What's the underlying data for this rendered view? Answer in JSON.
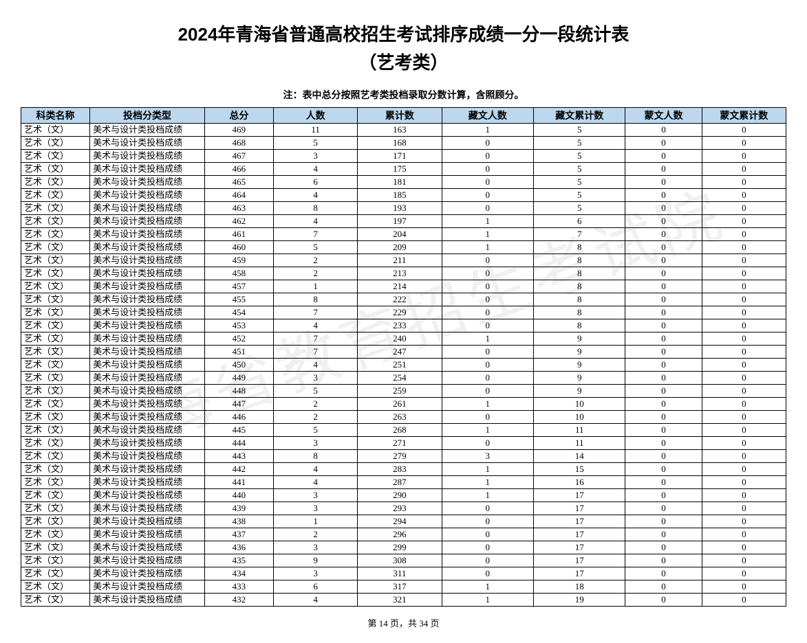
{
  "title": "2024年青海省普通高校招生考试排序成绩一分一段统计表",
  "subtitle": "（艺考类）",
  "note": "注：表中总分按照艺考类投档录取分数计算，含照顾分。",
  "watermark": "青海省教育招生考试院",
  "footer": "第 14 页，共 34 页",
  "columns": [
    "科类名称",
    "投档分类型",
    "总分",
    "人数",
    "累计数",
    "藏文人数",
    "藏文累计数",
    "蒙文人数",
    "蒙文累计数"
  ],
  "header_bg": "#bdd7ee",
  "border_color": "#000000",
  "category_label": "艺术（文）",
  "type_label": "美术与设计类投档成绩",
  "rows": [
    {
      "score": 469,
      "count": 11,
      "cum": 163,
      "zw": 1,
      "zw_cum": 5,
      "mw": 0,
      "mw_cum": 0
    },
    {
      "score": 468,
      "count": 5,
      "cum": 168,
      "zw": 0,
      "zw_cum": 5,
      "mw": 0,
      "mw_cum": 0
    },
    {
      "score": 467,
      "count": 3,
      "cum": 171,
      "zw": 0,
      "zw_cum": 5,
      "mw": 0,
      "mw_cum": 0
    },
    {
      "score": 466,
      "count": 4,
      "cum": 175,
      "zw": 0,
      "zw_cum": 5,
      "mw": 0,
      "mw_cum": 0
    },
    {
      "score": 465,
      "count": 6,
      "cum": 181,
      "zw": 0,
      "zw_cum": 5,
      "mw": 0,
      "mw_cum": 0
    },
    {
      "score": 464,
      "count": 4,
      "cum": 185,
      "zw": 0,
      "zw_cum": 5,
      "mw": 0,
      "mw_cum": 0
    },
    {
      "score": 463,
      "count": 8,
      "cum": 193,
      "zw": 0,
      "zw_cum": 5,
      "mw": 0,
      "mw_cum": 0
    },
    {
      "score": 462,
      "count": 4,
      "cum": 197,
      "zw": 1,
      "zw_cum": 6,
      "mw": 0,
      "mw_cum": 0
    },
    {
      "score": 461,
      "count": 7,
      "cum": 204,
      "zw": 1,
      "zw_cum": 7,
      "mw": 0,
      "mw_cum": 0
    },
    {
      "score": 460,
      "count": 5,
      "cum": 209,
      "zw": 1,
      "zw_cum": 8,
      "mw": 0,
      "mw_cum": 0
    },
    {
      "score": 459,
      "count": 2,
      "cum": 211,
      "zw": 0,
      "zw_cum": 8,
      "mw": 0,
      "mw_cum": 0
    },
    {
      "score": 458,
      "count": 2,
      "cum": 213,
      "zw": 0,
      "zw_cum": 8,
      "mw": 0,
      "mw_cum": 0
    },
    {
      "score": 457,
      "count": 1,
      "cum": 214,
      "zw": 0,
      "zw_cum": 8,
      "mw": 0,
      "mw_cum": 0
    },
    {
      "score": 455,
      "count": 8,
      "cum": 222,
      "zw": 0,
      "zw_cum": 8,
      "mw": 0,
      "mw_cum": 0
    },
    {
      "score": 454,
      "count": 7,
      "cum": 229,
      "zw": 0,
      "zw_cum": 8,
      "mw": 0,
      "mw_cum": 0
    },
    {
      "score": 453,
      "count": 4,
      "cum": 233,
      "zw": 0,
      "zw_cum": 8,
      "mw": 0,
      "mw_cum": 0
    },
    {
      "score": 452,
      "count": 7,
      "cum": 240,
      "zw": 1,
      "zw_cum": 9,
      "mw": 0,
      "mw_cum": 0
    },
    {
      "score": 451,
      "count": 7,
      "cum": 247,
      "zw": 0,
      "zw_cum": 9,
      "mw": 0,
      "mw_cum": 0
    },
    {
      "score": 450,
      "count": 4,
      "cum": 251,
      "zw": 0,
      "zw_cum": 9,
      "mw": 0,
      "mw_cum": 0
    },
    {
      "score": 449,
      "count": 3,
      "cum": 254,
      "zw": 0,
      "zw_cum": 9,
      "mw": 0,
      "mw_cum": 0
    },
    {
      "score": 448,
      "count": 5,
      "cum": 259,
      "zw": 0,
      "zw_cum": 9,
      "mw": 0,
      "mw_cum": 0
    },
    {
      "score": 447,
      "count": 2,
      "cum": 261,
      "zw": 1,
      "zw_cum": 10,
      "mw": 0,
      "mw_cum": 0
    },
    {
      "score": 446,
      "count": 2,
      "cum": 263,
      "zw": 0,
      "zw_cum": 10,
      "mw": 0,
      "mw_cum": 0
    },
    {
      "score": 445,
      "count": 5,
      "cum": 268,
      "zw": 1,
      "zw_cum": 11,
      "mw": 0,
      "mw_cum": 0
    },
    {
      "score": 444,
      "count": 3,
      "cum": 271,
      "zw": 0,
      "zw_cum": 11,
      "mw": 0,
      "mw_cum": 0
    },
    {
      "score": 443,
      "count": 8,
      "cum": 279,
      "zw": 3,
      "zw_cum": 14,
      "mw": 0,
      "mw_cum": 0
    },
    {
      "score": 442,
      "count": 4,
      "cum": 283,
      "zw": 1,
      "zw_cum": 15,
      "mw": 0,
      "mw_cum": 0
    },
    {
      "score": 441,
      "count": 4,
      "cum": 287,
      "zw": 1,
      "zw_cum": 16,
      "mw": 0,
      "mw_cum": 0
    },
    {
      "score": 440,
      "count": 3,
      "cum": 290,
      "zw": 1,
      "zw_cum": 17,
      "mw": 0,
      "mw_cum": 0
    },
    {
      "score": 439,
      "count": 3,
      "cum": 293,
      "zw": 0,
      "zw_cum": 17,
      "mw": 0,
      "mw_cum": 0
    },
    {
      "score": 438,
      "count": 1,
      "cum": 294,
      "zw": 0,
      "zw_cum": 17,
      "mw": 0,
      "mw_cum": 0
    },
    {
      "score": 437,
      "count": 2,
      "cum": 296,
      "zw": 0,
      "zw_cum": 17,
      "mw": 0,
      "mw_cum": 0
    },
    {
      "score": 436,
      "count": 3,
      "cum": 299,
      "zw": 0,
      "zw_cum": 17,
      "mw": 0,
      "mw_cum": 0
    },
    {
      "score": 435,
      "count": 9,
      "cum": 308,
      "zw": 0,
      "zw_cum": 17,
      "mw": 0,
      "mw_cum": 0
    },
    {
      "score": 434,
      "count": 3,
      "cum": 311,
      "zw": 0,
      "zw_cum": 17,
      "mw": 0,
      "mw_cum": 0
    },
    {
      "score": 433,
      "count": 6,
      "cum": 317,
      "zw": 1,
      "zw_cum": 18,
      "mw": 0,
      "mw_cum": 0
    },
    {
      "score": 432,
      "count": 4,
      "cum": 321,
      "zw": 1,
      "zw_cum": 19,
      "mw": 0,
      "mw_cum": 0
    }
  ]
}
